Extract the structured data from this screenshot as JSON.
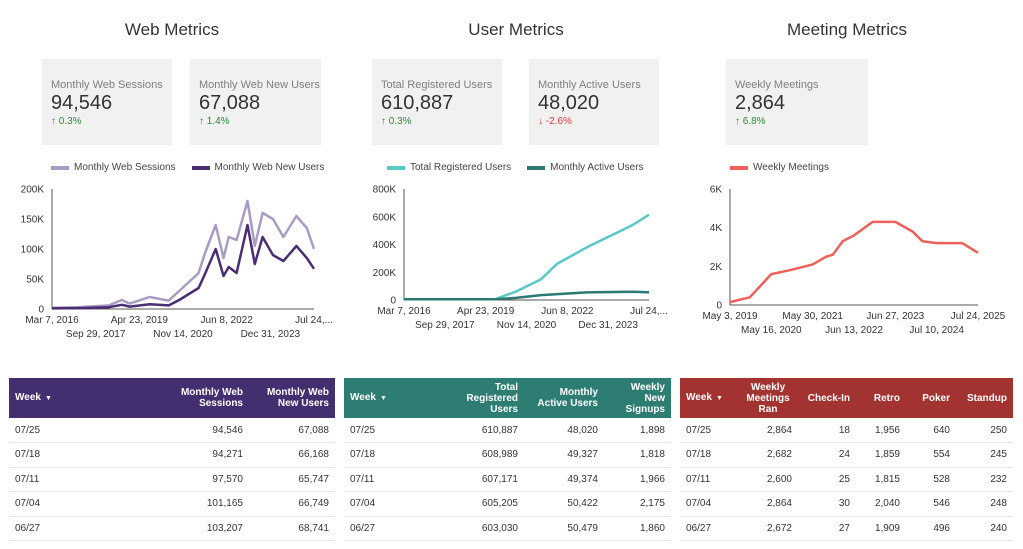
{
  "sections": {
    "web": {
      "title": "Web Metrics"
    },
    "user": {
      "title": "User Metrics"
    },
    "meeting": {
      "title": "Meeting Metrics"
    }
  },
  "kpis": {
    "web_sessions": {
      "label": "Monthly Web Sessions",
      "value": "94,546",
      "change": "0.3%",
      "direction": "up"
    },
    "web_new_users": {
      "label": "Monthly Web New Users",
      "value": "67,088",
      "change": "1.4%",
      "direction": "up"
    },
    "registered": {
      "label": "Total Registered Users",
      "value": "610,887",
      "change": "0.3%",
      "direction": "up"
    },
    "active": {
      "label": "Monthly Active Users",
      "value": "48,020",
      "change": "-2.6%",
      "direction": "down"
    },
    "meetings": {
      "label": "Weekly Meetings",
      "value": "2,864",
      "change": "6.8%",
      "direction": "up"
    }
  },
  "icons": {
    "up": "arrow-up-icon",
    "down": "arrow-down-icon",
    "sort": "sort-down-icon"
  },
  "colors": {
    "web_sessions": "#a99bc4",
    "web_new_users": "#4a2d75",
    "registered": "#5ac8c3",
    "active": "#2d7a74",
    "meetings": "#f0605a",
    "web_header": "#432e70",
    "user_header": "#2e7d73",
    "meeting_header": "#a33330"
  },
  "chart_data": [
    {
      "type": "line",
      "id": "web",
      "series": [
        {
          "name": "Monthly Web Sessions",
          "x": [
            "2016-03-07",
            "2017-01-01",
            "2018-01-01",
            "2018-06-01",
            "2018-09-01",
            "2019-04-23",
            "2019-12-01",
            "2020-04-01",
            "2020-11-14",
            "2021-02-01",
            "2021-06-01",
            "2021-09-01",
            "2021-11-01",
            "2022-02-01",
            "2022-06-08",
            "2022-09-01",
            "2022-12-01",
            "2023-04-01",
            "2023-08-01",
            "2023-12-31",
            "2024-05-01",
            "2024-07-24"
          ],
          "values": [
            2000,
            3000,
            6000,
            15000,
            9000,
            20000,
            14000,
            30000,
            60000,
            95000,
            140000,
            85000,
            120000,
            115000,
            180000,
            105000,
            160000,
            150000,
            120000,
            155000,
            135000,
            100000
          ]
        },
        {
          "name": "Monthly Web New Users",
          "x": [
            "2016-03-07",
            "2017-01-01",
            "2018-01-01",
            "2018-06-01",
            "2018-09-01",
            "2019-04-23",
            "2019-12-01",
            "2020-04-01",
            "2020-11-14",
            "2021-02-01",
            "2021-06-01",
            "2021-09-01",
            "2021-11-01",
            "2022-02-01",
            "2022-06-08",
            "2022-09-01",
            "2022-12-01",
            "2023-04-01",
            "2023-08-01",
            "2023-12-31",
            "2024-05-01",
            "2024-07-24"
          ],
          "values": [
            1000,
            1500,
            3000,
            7000,
            4000,
            8000,
            6000,
            15000,
            35000,
            60000,
            100000,
            55000,
            70000,
            60000,
            140000,
            75000,
            120000,
            90000,
            80000,
            105000,
            85000,
            67000
          ]
        }
      ],
      "x_ticks_row1": [
        "Mar 7, 2016",
        "Apr 23, 2019",
        "Jun 8, 2022",
        "Jul 24,..."
      ],
      "x_ticks_row2": [
        "Sep 29, 2017",
        "Nov 14, 2020",
        "Dec 31, 2023"
      ],
      "y_ticks": [
        "0",
        "50K",
        "100K",
        "150K",
        "200K"
      ],
      "ylim": [
        0,
        200000
      ],
      "legend": "top"
    },
    {
      "type": "line",
      "id": "user",
      "series": [
        {
          "name": "Total Registered Users",
          "x": [
            "2016-03-07",
            "2019-04-23",
            "2019-06-01",
            "2020-01-01",
            "2020-11-14",
            "2021-06-01",
            "2022-06-08",
            "2023-06-01",
            "2023-12-31",
            "2024-07-24"
          ],
          "values": [
            5000,
            5000,
            15000,
            60000,
            150000,
            260000,
            380000,
            480000,
            540000,
            615000
          ]
        },
        {
          "name": "Monthly Active Users",
          "x": [
            "2016-03-07",
            "2019-04-23",
            "2020-01-01",
            "2020-11-14",
            "2022-06-08",
            "2023-12-31",
            "2024-07-24"
          ],
          "values": [
            5000,
            5000,
            15000,
            35000,
            55000,
            60000,
            55000
          ]
        }
      ],
      "x_ticks_row1": [
        "Mar 7, 2016",
        "Apr 23, 2019",
        "Jun 8, 2022",
        "Jul 24,..."
      ],
      "x_ticks_row2": [
        "Sep 29, 2017",
        "Nov 14, 2020",
        "Dec 31, 2023"
      ],
      "y_ticks": [
        "0",
        "200K",
        "400K",
        "600K",
        "800K"
      ],
      "ylim": [
        0,
        800000
      ],
      "legend": "top"
    },
    {
      "type": "line",
      "id": "meeting",
      "series": [
        {
          "name": "Weekly Meetings",
          "x": [
            "2019-05-03",
            "2019-11-01",
            "2020-05-16",
            "2020-11-01",
            "2021-05-30",
            "2021-10-01",
            "2021-12-01",
            "2022-03-01",
            "2022-06-13",
            "2022-12-01",
            "2023-06-27",
            "2023-12-01",
            "2024-03-01",
            "2024-07-10",
            "2025-03-01",
            "2025-07-24"
          ],
          "values": [
            150,
            400,
            1600,
            1800,
            2100,
            2500,
            2600,
            3300,
            3600,
            4300,
            4300,
            3800,
            3300,
            3200,
            3200,
            2700
          ]
        }
      ],
      "x_ticks_row1": [
        "May 3, 2019",
        "May 30, 2021",
        "Jun 27, 2023",
        "Jul 24, 2025"
      ],
      "x_ticks_row2": [
        "May 16, 2020",
        "Jun 13, 2022",
        "Jul 10, 2024"
      ],
      "y_ticks": [
        "0",
        "2K",
        "4K",
        "6K"
      ],
      "ylim": [
        0,
        6000
      ],
      "legend": "top"
    }
  ],
  "tables": {
    "web": {
      "headers": [
        "Week",
        "Monthly Web Sessions",
        "Monthly Web New Users"
      ],
      "rows": [
        [
          "07/25",
          "94,546",
          "67,088"
        ],
        [
          "07/18",
          "94,271",
          "66,168"
        ],
        [
          "07/11",
          "97,570",
          "65,747"
        ],
        [
          "07/04",
          "101,165",
          "66,749"
        ],
        [
          "06/27",
          "103,207",
          "68,741"
        ]
      ]
    },
    "user": {
      "headers": [
        "Week",
        "Total Registered Users",
        "Monthly Active Users",
        "Weekly New Signups"
      ],
      "rows": [
        [
          "07/25",
          "610,887",
          "48,020",
          "1,898"
        ],
        [
          "07/18",
          "608,989",
          "49,327",
          "1,818"
        ],
        [
          "07/11",
          "607,171",
          "49,374",
          "1,966"
        ],
        [
          "07/04",
          "605,205",
          "50,422",
          "2,175"
        ],
        [
          "06/27",
          "603,030",
          "50,479",
          "1,860"
        ]
      ]
    },
    "meeting": {
      "headers": [
        "Week",
        "Weekly Meetings Ran",
        "Check-In",
        "Retro",
        "Poker",
        "Standup"
      ],
      "rows": [
        [
          "07/25",
          "2,864",
          "18",
          "1,956",
          "640",
          "250"
        ],
        [
          "07/18",
          "2,682",
          "24",
          "1,859",
          "554",
          "245"
        ],
        [
          "07/11",
          "2,600",
          "25",
          "1,815",
          "528",
          "232"
        ],
        [
          "07/04",
          "2,864",
          "30",
          "2,040",
          "546",
          "248"
        ],
        [
          "06/27",
          "2,672",
          "27",
          "1,909",
          "496",
          "240"
        ]
      ]
    }
  }
}
